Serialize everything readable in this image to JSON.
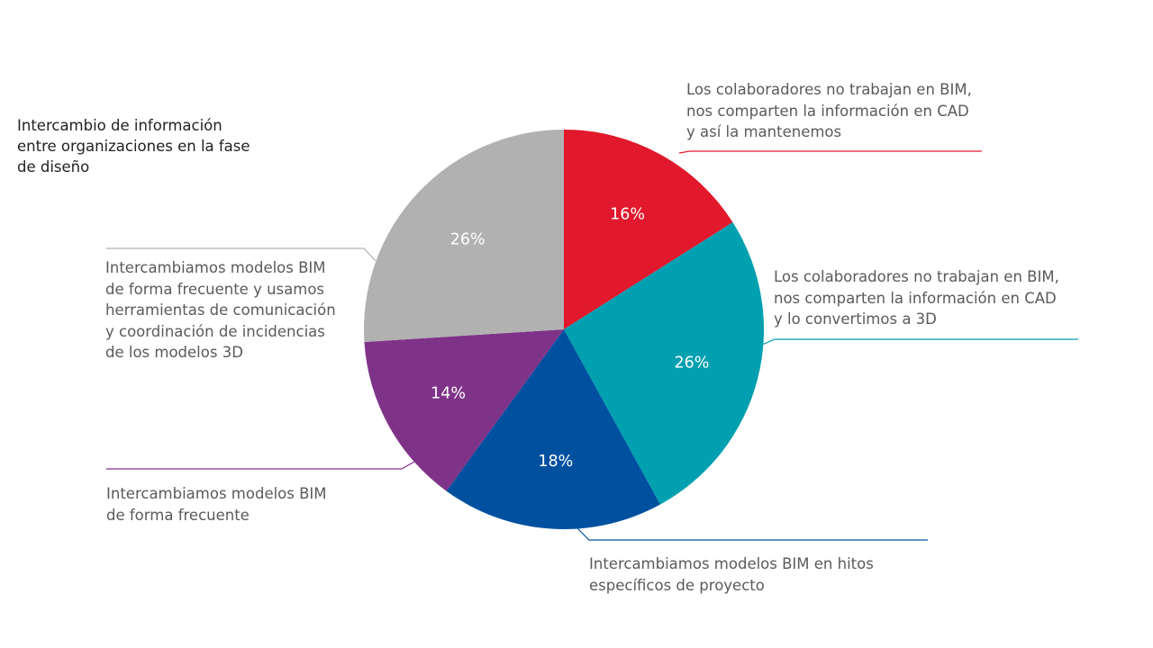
{
  "chart_data": {
    "type": "pie",
    "title": "Intercambio de información\nentre organizaciones en la fase\nde diseño",
    "slices": [
      {
        "label": "Los colaboradores no trabajan en BIM,\nnos comparten la información en CAD\ny así la mantenemos",
        "value": 16,
        "value_label": "16%",
        "color": "#e2182c"
      },
      {
        "label": "Los colaboradores no trabajan en BIM,\nnos comparten la información en CAD\ny lo convertimos a 3D",
        "value": 26,
        "value_label": "26%",
        "color": "#00a0b0"
      },
      {
        "label": "Intercambiamos modelos BIM en hitos\nespecíficos de proyecto",
        "value": 18,
        "value_label": "18%",
        "color": "#0050a0"
      },
      {
        "label": "Intercambiamos modelos BIM\nde forma frecuente",
        "value": 14,
        "value_label": "14%",
        "color": "#7f3388"
      },
      {
        "label": "Intercambiamos modelos BIM\nde forma frecuente y usamos\nherramientas de comunicación\ny coordinación de incidencias\nde los modelos 3D",
        "value": 26,
        "value_label": "26%",
        "color": "#b1b1b1"
      }
    ]
  }
}
